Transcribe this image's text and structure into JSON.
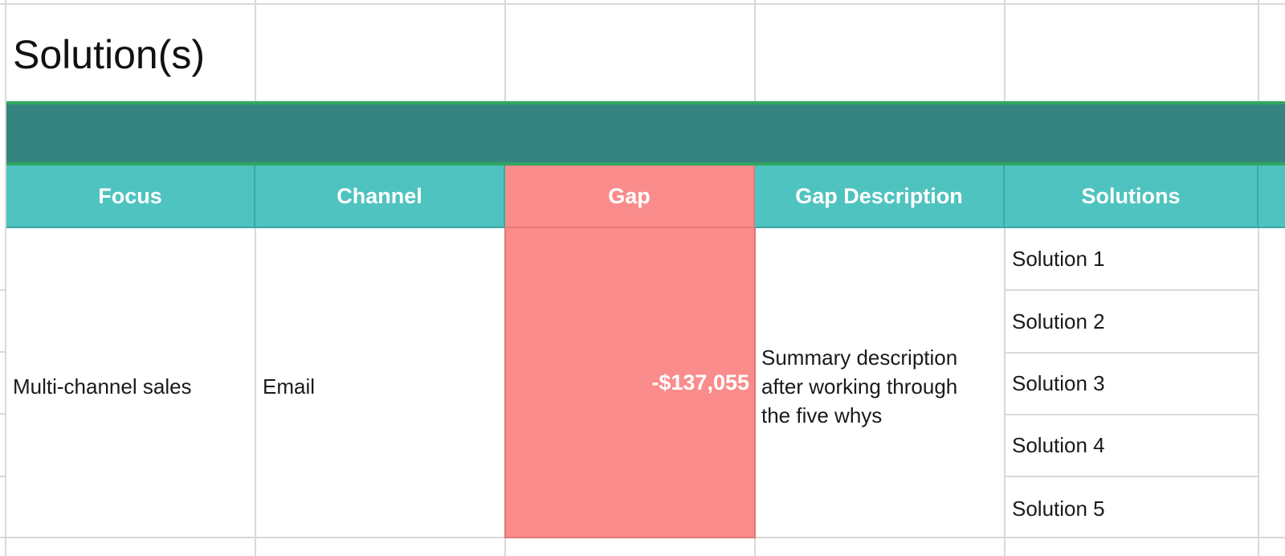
{
  "title": "Solution(s)",
  "header": {
    "focus": "Focus",
    "channel": "Channel",
    "gap": "Gap",
    "gap_description": "Gap Description",
    "solutions": "Solutions"
  },
  "row": {
    "focus": "Multi-channel sales",
    "channel": "Email",
    "gap": "-$137,055",
    "gap_description": "Summary description after working through the five whys",
    "solutions": [
      "Solution 1",
      "Solution 2",
      "Solution 3",
      "Solution 4",
      "Solution 5"
    ]
  },
  "colors": {
    "band": "#35847f",
    "band_border": "#2fa860",
    "header_bg": "#4fc3bf",
    "gap_bg": "#fa8c8c",
    "header_text": "#ffffff"
  }
}
